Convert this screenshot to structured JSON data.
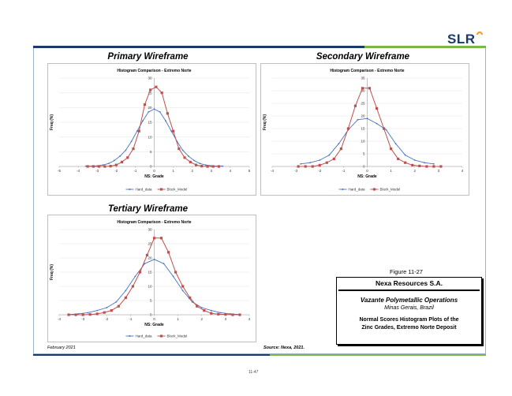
{
  "logo": {
    "text": "SLR"
  },
  "colors": {
    "hard": "#4472c4",
    "block": "#c0504d",
    "frame": "#9fb3c8",
    "topbar_left": "#1b3a6b",
    "topbar_right": "#7ab648"
  },
  "sections": {
    "primary": "Primary Wireframe",
    "secondary": "Secondary Wireframe",
    "tertiary": "Tertiary Wireframe"
  },
  "chart_data": [
    {
      "type": "line",
      "title": "Histogram Comparison - Extremo Norte",
      "xlabel": "NS: Grade",
      "ylabel": "Freq (%)",
      "xlim": [
        -5,
        5
      ],
      "ylim": [
        0,
        30
      ],
      "xticks": [
        "-5",
        "-4",
        "-3",
        "-2",
        "-1",
        "0",
        "1",
        "2",
        "3",
        "4",
        "5"
      ],
      "yticks": [
        "0",
        "5",
        "10",
        "15",
        "20",
        "25",
        "30"
      ],
      "legend": [
        "Hard_data",
        "Block_Model"
      ],
      "series": [
        {
          "name": "Hard_data",
          "x": [
            -3.6,
            -3.3,
            -3.0,
            -2.7,
            -2.4,
            -2.1,
            -1.8,
            -1.5,
            -1.2,
            -0.9,
            -0.6,
            -0.3,
            0,
            0.3,
            0.6,
            0.9,
            1.2,
            1.5,
            1.8,
            2.1,
            2.4,
            2.7,
            3.0,
            3.3,
            3.6
          ],
          "y": [
            0.1,
            0.1,
            0.2,
            0.5,
            1,
            2,
            3.5,
            5.5,
            8.5,
            12,
            15.5,
            18.5,
            19.5,
            18.5,
            15.5,
            12,
            8.5,
            5.5,
            3.5,
            2,
            1,
            0.5,
            0.2,
            0.1,
            0.1
          ]
        },
        {
          "name": "Block_Model",
          "x": [
            -3.5,
            -3.2,
            -2.9,
            -2.6,
            -2.3,
            -2.0,
            -1.7,
            -1.4,
            -1.1,
            -0.8,
            -0.5,
            -0.2,
            0.1,
            0.4,
            0.7,
            1.0,
            1.3,
            1.6,
            1.9,
            2.2,
            2.5,
            2.8,
            3.1,
            3.4
          ],
          "y": [
            0,
            0,
            0,
            0,
            0.1,
            0.5,
            1.5,
            3,
            6,
            12,
            21,
            26,
            27,
            25,
            18,
            12,
            6,
            3,
            1.5,
            0.5,
            0.1,
            0,
            0,
            0
          ]
        }
      ]
    },
    {
      "type": "line",
      "title": "Histogram Comparison - Extremo Norte",
      "xlabel": "NS: Grade",
      "ylabel": "Freq (%)",
      "xlim": [
        -4,
        4
      ],
      "ylim": [
        0,
        35
      ],
      "xticks": [
        "-4",
        "-3",
        "-2",
        "-1",
        "0",
        "1",
        "2",
        "3",
        "4"
      ],
      "yticks": [
        "0",
        "5",
        "10",
        "15",
        "20",
        "25",
        "30",
        "35"
      ],
      "legend": [
        "Hard_data",
        "Block_Model"
      ],
      "series": [
        {
          "name": "Hard_data",
          "x": [
            -2.8,
            -2.4,
            -2.0,
            -1.6,
            -1.2,
            -0.8,
            -0.4,
            0,
            0.4,
            0.8,
            1.2,
            1.6,
            2.0,
            2.4,
            2.8
          ],
          "y": [
            1,
            1.5,
            2.5,
            4.5,
            9,
            14.5,
            18.5,
            19,
            17,
            14.5,
            9,
            4.5,
            2.5,
            1.5,
            1
          ]
        },
        {
          "name": "Block_Model",
          "x": [
            -2.9,
            -2.6,
            -2.3,
            -2.0,
            -1.7,
            -1.4,
            -1.1,
            -0.8,
            -0.5,
            -0.2,
            0.1,
            0.4,
            0.7,
            1.0,
            1.3,
            1.6,
            1.9,
            2.2,
            2.5,
            2.8,
            3.1
          ],
          "y": [
            0,
            0,
            0,
            0.5,
            1.5,
            3,
            7,
            15,
            24,
            31,
            31,
            23,
            15,
            7,
            3,
            1.5,
            0.5,
            0.2,
            0,
            0,
            0
          ]
        }
      ]
    },
    {
      "type": "line",
      "title": "Histogram Comparison - Extremo Norte",
      "xlabel": "NS: Grade",
      "ylabel": "Freq (%)",
      "xlim": [
        -4,
        4
      ],
      "ylim": [
        0,
        30
      ],
      "xticks": [
        "-4",
        "-3",
        "-2",
        "-1",
        "0",
        "1",
        "2",
        "3",
        "4"
      ],
      "yticks": [
        "0",
        "5",
        "10",
        "15",
        "20",
        "25",
        "30"
      ],
      "legend": [
        "Hard_data",
        "Block_Model"
      ],
      "series": [
        {
          "name": "Hard_data",
          "x": [
            -3.6,
            -3.2,
            -2.8,
            -2.4,
            -2.0,
            -1.6,
            -1.2,
            -0.8,
            -0.4,
            0,
            0.4,
            0.8,
            1.2,
            1.6,
            2.0,
            2.4,
            2.8,
            3.2,
            3.6
          ],
          "y": [
            0.1,
            0.3,
            0.7,
            1.5,
            2.5,
            4.5,
            8.5,
            13.5,
            18,
            19.5,
            18,
            13.5,
            8.5,
            4.5,
            2.5,
            1.5,
            0.7,
            0.3,
            0.1
          ]
        },
        {
          "name": "Block_Model",
          "x": [
            -3.6,
            -3.3,
            -3.0,
            -2.7,
            -2.4,
            -2.1,
            -1.8,
            -1.5,
            -1.2,
            -0.9,
            -0.6,
            -0.3,
            0,
            0.3,
            0.6,
            0.9,
            1.2,
            1.5,
            1.8,
            2.1,
            2.4,
            2.7,
            3.0,
            3.3,
            3.6
          ],
          "y": [
            0,
            0,
            0,
            0.1,
            0.3,
            0.8,
            1.5,
            3,
            6,
            10,
            15,
            21,
            27,
            27,
            22,
            15,
            10,
            6,
            3,
            1.5,
            0.5,
            0.2,
            0.1,
            0,
            0
          ]
        }
      ]
    }
  ],
  "figure": {
    "label": "Figure 11-27",
    "company": "Nexa Resources S.A.",
    "project": "Vazante Polymetallic Operations",
    "location": "Minas Gerais, Brazil",
    "caption_line1": "Normal Scores Histogram Plots of the",
    "caption_line2": "Zinc Grades, Extremo Norte Deposit"
  },
  "footer": {
    "date": "February 2021",
    "source": "Source: Nexa, 2021.",
    "page": "11-47"
  }
}
